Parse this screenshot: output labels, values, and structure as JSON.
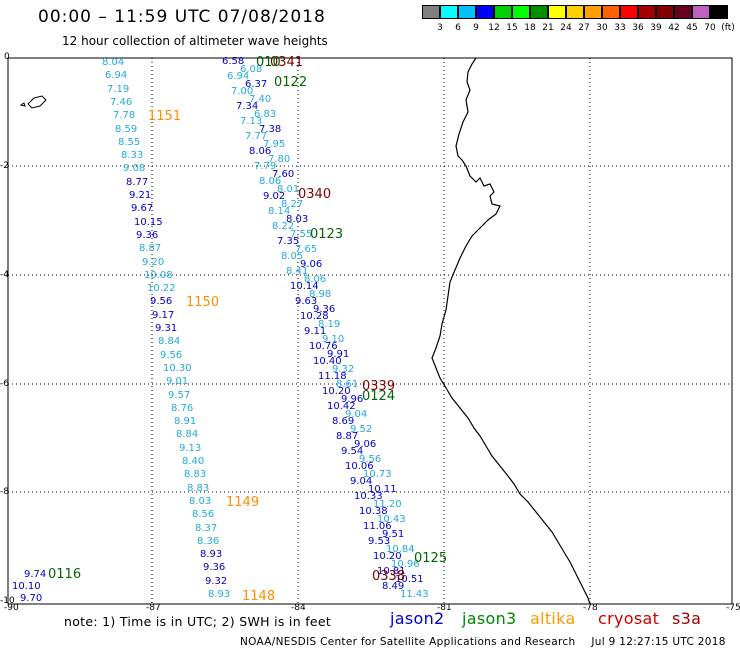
{
  "header": {
    "title": "00:00 – 11:59 UTC 07/08/2018",
    "subtitle": "12 hour collection of altimeter wave heights"
  },
  "colorbar": {
    "unit": "(ft)",
    "levels": [
      "3",
      "6",
      "9",
      "12",
      "15",
      "18",
      "21",
      "24",
      "27",
      "30",
      "33",
      "36",
      "39",
      "42",
      "45",
      "70"
    ],
    "colors": [
      "#808080",
      "#00ffff",
      "#00c0ff",
      "#0000ff",
      "#00d000",
      "#00ff00",
      "#009000",
      "#ffff00",
      "#ffd000",
      "#ffa000",
      "#ff6000",
      "#ff0000",
      "#a00000",
      "#800000",
      "#6a0020",
      "#c060c0",
      "#000000"
    ]
  },
  "axes": {
    "lat_labels": [
      "0",
      "-2",
      "-4",
      "-6",
      "-8",
      "-10"
    ],
    "lon_labels": [
      "-90",
      "-87",
      "-84",
      "-81",
      "-78",
      "-75"
    ]
  },
  "tracks": {
    "jason2_color": "#0000cc",
    "jason3_color": "#006600",
    "altika_color": "#ff8c00",
    "cryosat_color": "#800000",
    "light_color": "#22aadd"
  },
  "track_labels": [
    {
      "text": "1151",
      "sat": "altika"
    },
    {
      "text": "1150",
      "sat": "altika"
    },
    {
      "text": "1149",
      "sat": "altika"
    },
    {
      "text": "1148",
      "sat": "altika"
    },
    {
      "text": "0341",
      "sat": "cryosat"
    },
    {
      "text": "0340",
      "sat": "cryosat"
    },
    {
      "text": "0339",
      "sat": "cryosat"
    },
    {
      "text": "0338",
      "sat": "cryosat"
    },
    {
      "text": "0122",
      "sat": "jason3"
    },
    {
      "text": "0123",
      "sat": "jason3"
    },
    {
      "text": "0124",
      "sat": "jason3"
    },
    {
      "text": "0125",
      "sat": "jason3"
    },
    {
      "text": "0116",
      "sat": "jason3"
    },
    {
      "text": "010",
      "sat": "jason3"
    }
  ],
  "track_a_values": [
    "8.04",
    "6.94",
    "7.19",
    "7.46",
    "7.78",
    "8.59",
    "8.55",
    "8.33",
    "9.08",
    "8.77",
    "9.21",
    "9.67",
    "10.15",
    "9.36",
    "8.87",
    "9.20",
    "10.08",
    "10.22",
    "9.56",
    "9.17",
    "9.31",
    "8.84",
    "9.56",
    "10.30",
    "9.01",
    "9.57",
    "8.76",
    "8.91",
    "8.84",
    "9.13",
    "8.40",
    "8.83",
    "8.83",
    "8.03",
    "8.56",
    "8.37",
    "8.36",
    "8.93",
    "9.36",
    "9.32",
    "8.93"
  ],
  "track_b_values": [
    "6.58",
    "6.08",
    "6.94",
    "6.37",
    "7.00",
    "7.40",
    "7.34",
    "6.83",
    "7.13",
    "7.38",
    "7.77",
    "7.95",
    "8.06",
    "7.80",
    "7.79",
    "7.60",
    "8.06",
    "8.01",
    "9.02",
    "8.27",
    "8.14",
    "8.03",
    "8.22",
    "7.55",
    "7.35",
    "7.65",
    "8.05",
    "9.06",
    "8.41",
    "8.06",
    "10.14",
    "8.98",
    "9.63",
    "9.36",
    "10.28",
    "8.19",
    "9.11",
    "9.10",
    "10.76",
    "9.91",
    "10.40",
    "9.32",
    "11.18",
    "8.61",
    "10.20",
    "9.96",
    "10.42",
    "9.04",
    "8.69",
    "9.52",
    "8.87",
    "9.06",
    "9.54",
    "9.56",
    "10.06",
    "10.73",
    "9.04",
    "10.11",
    "10.33",
    "11.20",
    "10.38",
    "10.43",
    "11.06",
    "9.51",
    "9.53",
    "10.84",
    "10.20",
    "10.96",
    "10.81",
    "10.51",
    "8.49",
    "11.43"
  ],
  "west_values": [
    "9.74",
    "10.10",
    "9.70"
  ],
  "footer": {
    "note": "note: 1) Time is in UTC; 2) SWH is in feet",
    "sats": [
      "jason2",
      "jason3",
      "altika",
      "cryosat",
      "s3a"
    ],
    "credit": "NOAA/NESDIS Center for Satellite Applications and Research",
    "timestamp": "Jul  9 12:27:15 UTC 2018"
  }
}
